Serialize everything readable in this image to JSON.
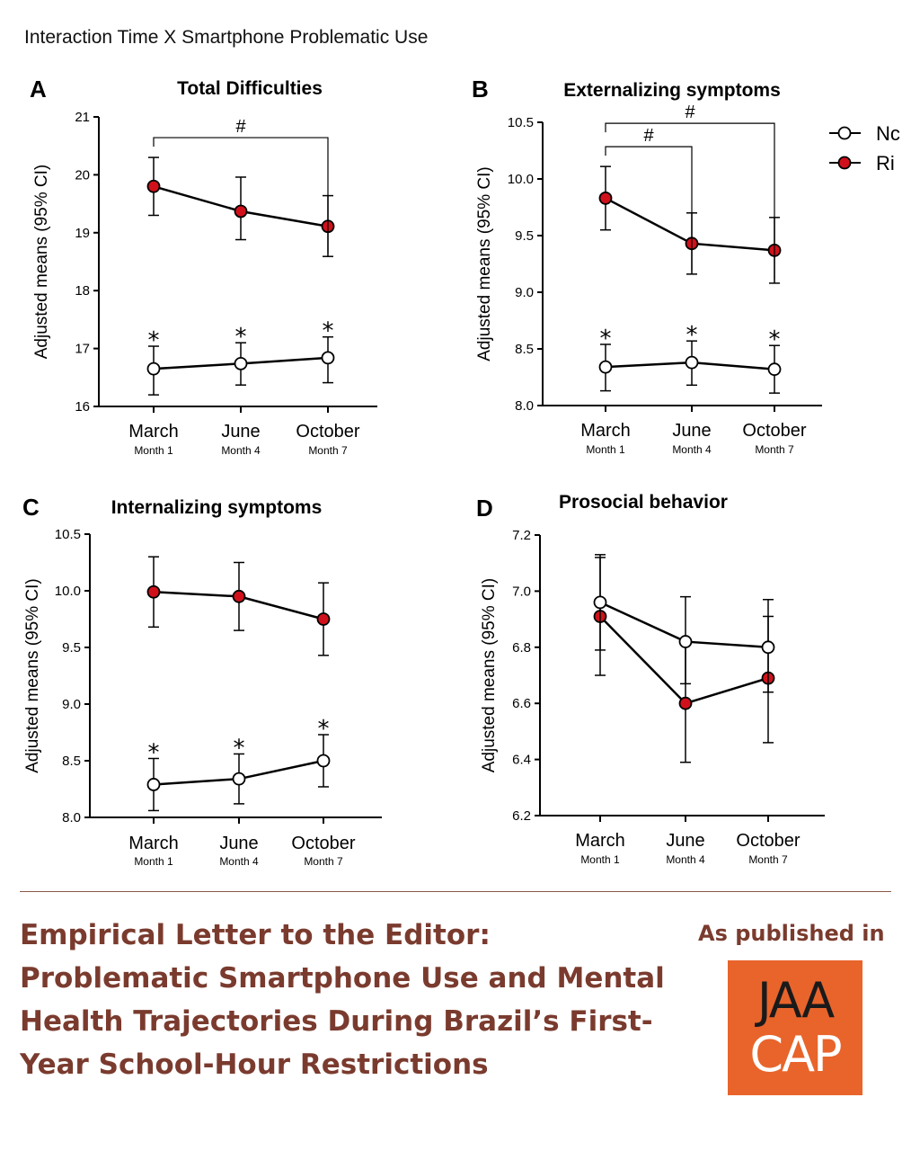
{
  "figure_title": "Interaction Time X Smartphone Problematic Use",
  "legend": {
    "items": [
      "Nc",
      "Ri"
    ]
  },
  "colors": {
    "risk": "#d0111b",
    "none": "#ffffff",
    "line": "#000000",
    "headline": "#7a3b2e",
    "logo_bg": "#e8642b"
  },
  "categories": [
    "March",
    "June",
    "October"
  ],
  "subcategories": [
    "Month 1",
    "Month 4",
    "Month 7"
  ],
  "ylabel": "Adjusted means (95% CI)",
  "chart_data": [
    {
      "panel": "A",
      "title": "Total Difficulties",
      "type": "line",
      "ylim": [
        16,
        21
      ],
      "yticks": [
        "16",
        "17",
        "18",
        "19",
        "20",
        "21"
      ],
      "categories": [
        "March",
        "June",
        "October"
      ],
      "series": [
        {
          "name": "Ri",
          "values": [
            19.8,
            19.37,
            19.11
          ],
          "ci_low": [
            19.3,
            18.88,
            18.59
          ],
          "ci_high": [
            20.3,
            19.96,
            19.64
          ]
        },
        {
          "name": "Nc",
          "values": [
            16.65,
            16.74,
            16.84
          ],
          "ci_low": [
            16.2,
            16.37,
            16.41
          ],
          "ci_high": [
            17.04,
            17.1,
            17.2
          ]
        }
      ],
      "stars": [
        "*",
        "*",
        "*"
      ],
      "brackets": [
        {
          "from": 0,
          "to": 2,
          "label": "#"
        }
      ]
    },
    {
      "panel": "B",
      "title": "Externalizing symptoms",
      "type": "line",
      "ylim": [
        8.0,
        10.5
      ],
      "yticks": [
        "8.0",
        "8.5",
        "9.0",
        "9.5",
        "10.0",
        "10.5"
      ],
      "categories": [
        "March",
        "June",
        "October"
      ],
      "series": [
        {
          "name": "Ri",
          "values": [
            9.83,
            9.43,
            9.37
          ],
          "ci_low": [
            9.55,
            9.16,
            9.08
          ],
          "ci_high": [
            10.11,
            9.7,
            9.66
          ]
        },
        {
          "name": "Nc",
          "values": [
            8.34,
            8.38,
            8.32
          ],
          "ci_low": [
            8.13,
            8.18,
            8.11
          ],
          "ci_high": [
            8.54,
            8.57,
            8.53
          ]
        }
      ],
      "stars": [
        "*",
        "*",
        "*"
      ],
      "brackets": [
        {
          "from": 0,
          "to": 1,
          "label": "#"
        },
        {
          "from": 0,
          "to": 2,
          "label": "#"
        }
      ]
    },
    {
      "panel": "C",
      "title": "Internalizing symptoms",
      "type": "line",
      "ylim": [
        8.0,
        10.5
      ],
      "yticks": [
        "8.0",
        "8.5",
        "9.0",
        "9.5",
        "10.0",
        "10.5"
      ],
      "categories": [
        "March",
        "June",
        "October"
      ],
      "series": [
        {
          "name": "Ri",
          "values": [
            9.99,
            9.95,
            9.75
          ],
          "ci_low": [
            9.68,
            9.65,
            9.43
          ],
          "ci_high": [
            10.3,
            10.25,
            10.07
          ]
        },
        {
          "name": "Nc",
          "values": [
            8.29,
            8.34,
            8.5
          ],
          "ci_low": [
            8.06,
            8.12,
            8.27
          ],
          "ci_high": [
            8.52,
            8.56,
            8.73
          ]
        }
      ],
      "stars": [
        "*",
        "*",
        "*"
      ],
      "brackets": []
    },
    {
      "panel": "D",
      "title": "Prosocial behavior",
      "type": "line",
      "ylim": [
        6.2,
        7.2
      ],
      "yticks": [
        "6.2",
        "6.4",
        "6.6",
        "6.8",
        "7.0",
        "7.2"
      ],
      "categories": [
        "March",
        "June",
        "October"
      ],
      "series": [
        {
          "name": "Ri",
          "values": [
            6.91,
            6.6,
            6.69
          ],
          "ci_low": [
            6.7,
            6.39,
            6.46
          ],
          "ci_high": [
            7.12,
            6.82,
            6.91
          ]
        },
        {
          "name": "Nc",
          "values": [
            6.96,
            6.82,
            6.8
          ],
          "ci_low": [
            6.79,
            6.67,
            6.64
          ],
          "ci_high": [
            7.13,
            6.98,
            6.97
          ]
        }
      ],
      "stars": [],
      "brackets": []
    }
  ],
  "footer": {
    "headline": "Empirical Letter to the Editor: Problematic Smartphone Use and Mental Health Trajectories During Brazil’s First-Year School-Hour Restrictions",
    "published_label": "As published in",
    "logo_line1": "JAA",
    "logo_line2": "CAP"
  }
}
